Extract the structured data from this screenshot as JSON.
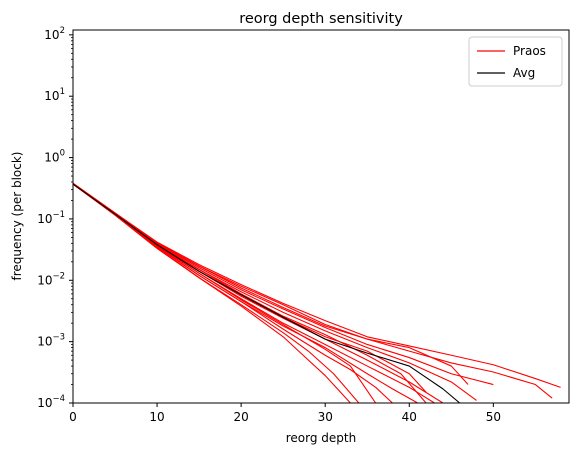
{
  "chart_data": {
    "type": "line",
    "title": "reorg depth sensitivity",
    "xlabel": "reorg depth",
    "ylabel": "frequency (per block)",
    "xlim": [
      0,
      59
    ],
    "ylim": [
      0.0001,
      120
    ],
    "yscale": "log",
    "grid": false,
    "legend_position": "top-right",
    "x_ticks": [
      0,
      10,
      20,
      30,
      40,
      50
    ],
    "y_ticks": [
      0.0001,
      0.001,
      0.01,
      0.1,
      1,
      10,
      100
    ],
    "y_tick_exponents": [
      "-4",
      "-3",
      "-2",
      "-1",
      "0",
      "1",
      "2"
    ],
    "y_tick_base": "10",
    "legend": [
      {
        "label": "Praos",
        "color": "#ff0000"
      },
      {
        "label": "Avg",
        "color": "#000000"
      }
    ],
    "colors": {
      "praos": "#ff0000",
      "avg": "#000000"
    },
    "series": [
      {
        "group": "Praos",
        "x": [
          0,
          5,
          10,
          15,
          20,
          25,
          30,
          35,
          40,
          45,
          50,
          55,
          58
        ],
        "y": [
          0.38,
          0.125,
          0.042,
          0.018,
          0.0085,
          0.0042,
          0.0022,
          0.0012,
          0.00085,
          0.0006,
          0.00042,
          0.00025,
          0.00018
        ]
      },
      {
        "group": "Praos",
        "x": [
          0,
          5,
          10,
          15,
          20,
          25,
          30,
          35,
          40,
          45,
          50,
          55,
          57
        ],
        "y": [
          0.38,
          0.125,
          0.041,
          0.017,
          0.008,
          0.004,
          0.0019,
          0.0011,
          0.0007,
          0.00045,
          0.00032,
          0.0002,
          0.00012
        ]
      },
      {
        "group": "Praos",
        "x": [
          0,
          5,
          10,
          15,
          20,
          25,
          30,
          35,
          40,
          45,
          50
        ],
        "y": [
          0.38,
          0.124,
          0.04,
          0.016,
          0.007,
          0.0034,
          0.0017,
          0.0009,
          0.00055,
          0.0003,
          0.0002
        ]
      },
      {
        "group": "Praos",
        "x": [
          0,
          5,
          10,
          15,
          20,
          25,
          30,
          35,
          40,
          45,
          48
        ],
        "y": [
          0.37,
          0.122,
          0.039,
          0.015,
          0.0065,
          0.003,
          0.0015,
          0.0008,
          0.00045,
          0.00022,
          0.00011
        ]
      },
      {
        "group": "Praos",
        "x": [
          0,
          5,
          10,
          15,
          20,
          25,
          30,
          35,
          40,
          44
        ],
        "y": [
          0.37,
          0.12,
          0.037,
          0.014,
          0.0055,
          0.0024,
          0.0011,
          0.0005,
          0.00022,
          0.0001
        ]
      },
      {
        "group": "Praos",
        "x": [
          0,
          5,
          10,
          15,
          20,
          25,
          30,
          35,
          40,
          43
        ],
        "y": [
          0.37,
          0.12,
          0.037,
          0.013,
          0.005,
          0.002,
          0.0009,
          0.0004,
          0.00018,
          0.0001
        ]
      },
      {
        "group": "Praos",
        "x": [
          0,
          5,
          10,
          15,
          20,
          25,
          30,
          35,
          38,
          41
        ],
        "y": [
          0.37,
          0.118,
          0.035,
          0.012,
          0.0045,
          0.0018,
          0.0008,
          0.0003,
          0.00017,
          0.0001
        ]
      },
      {
        "group": "Praos",
        "x": [
          0,
          5,
          10,
          15,
          20,
          25,
          30,
          33,
          36,
          38
        ],
        "y": [
          0.37,
          0.118,
          0.035,
          0.012,
          0.0045,
          0.0016,
          0.0006,
          0.00035,
          0.00018,
          0.0001
        ]
      },
      {
        "group": "Praos",
        "x": [
          0,
          5,
          10,
          15,
          20,
          25,
          28,
          31,
          34
        ],
        "y": [
          0.37,
          0.116,
          0.034,
          0.011,
          0.004,
          0.0014,
          0.0007,
          0.0003,
          0.0001
        ]
      },
      {
        "group": "Praos",
        "x": [
          0,
          5,
          10,
          15,
          20,
          25,
          28,
          30,
          33
        ],
        "y": [
          0.37,
          0.115,
          0.033,
          0.011,
          0.0038,
          0.0012,
          0.0005,
          0.00028,
          0.0001
        ]
      },
      {
        "group": "Praos",
        "x": [
          0,
          5,
          10,
          15,
          20,
          25,
          30,
          35,
          40,
          45,
          47
        ],
        "y": [
          0.38,
          0.124,
          0.04,
          0.017,
          0.0075,
          0.0036,
          0.0018,
          0.0011,
          0.0008,
          0.0004,
          0.0002
        ]
      },
      {
        "group": "Praos",
        "x": [
          0,
          5,
          10,
          15,
          20,
          25,
          30,
          35,
          39,
          42
        ],
        "y": [
          0.37,
          0.12,
          0.038,
          0.015,
          0.006,
          0.0026,
          0.0013,
          0.0006,
          0.0003,
          0.0001
        ]
      },
      {
        "group": "Praos",
        "x": [
          0,
          5,
          10,
          15,
          20,
          25,
          30,
          35,
          40,
          42
        ],
        "y": [
          0.37,
          0.121,
          0.038,
          0.014,
          0.0058,
          0.0025,
          0.0012,
          0.0007,
          0.0003,
          0.00015
        ]
      },
      {
        "group": "Praos",
        "x": [
          0,
          5,
          10,
          15,
          20,
          25,
          30,
          33,
          36
        ],
        "y": [
          0.37,
          0.118,
          0.036,
          0.013,
          0.0048,
          0.0019,
          0.00075,
          0.0004,
          0.0001
        ]
      },
      {
        "group": "Avg",
        "x": [
          0,
          5,
          10,
          15,
          20,
          25,
          30,
          35,
          40,
          44,
          46
        ],
        "y": [
          0.37,
          0.12,
          0.038,
          0.014,
          0.0058,
          0.0025,
          0.0011,
          0.00065,
          0.0004,
          0.00017,
          0.0001
        ]
      }
    ]
  }
}
